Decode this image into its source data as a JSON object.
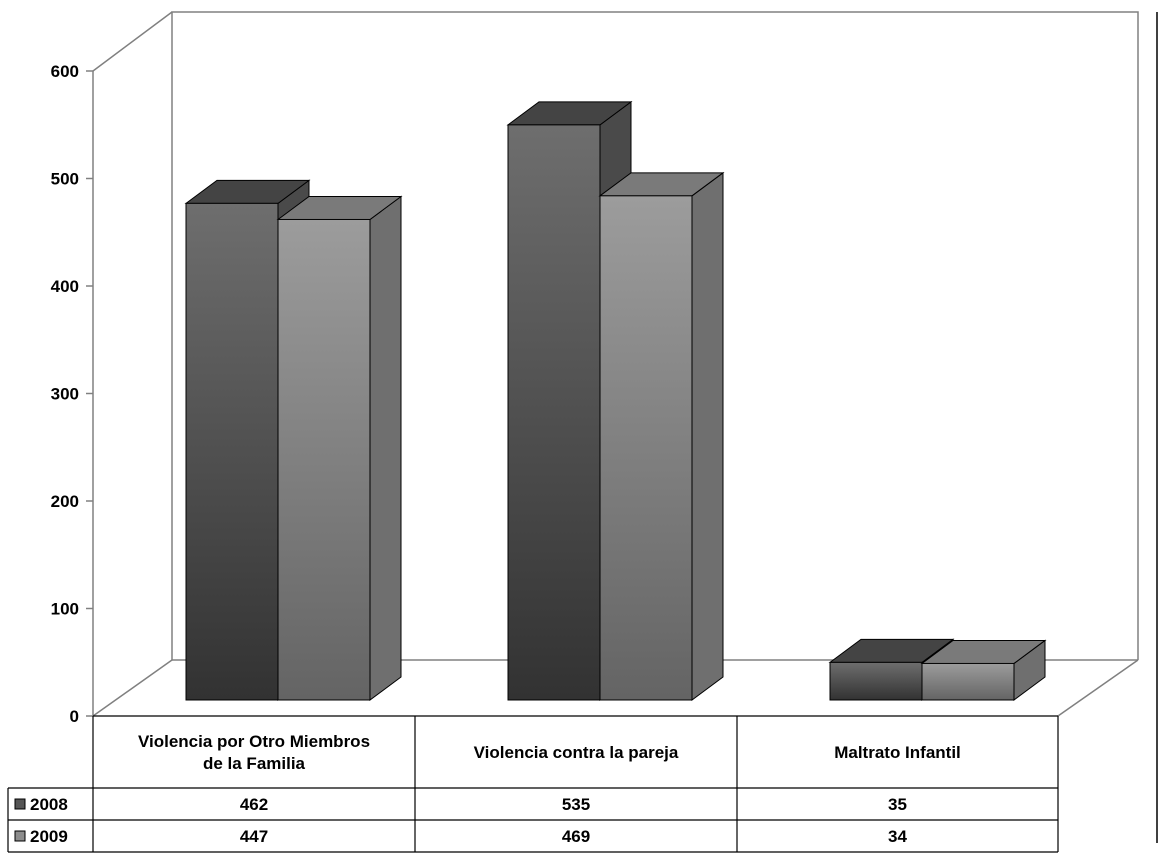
{
  "chart_data": {
    "type": "bar",
    "style": "3d-clustered-column-with-data-table",
    "categories": [
      [
        "Violencia por Otro Miembros",
        "de la Familia"
      ],
      [
        "Violencia contra la pareja"
      ],
      [
        "Maltrato Infantil"
      ]
    ],
    "series": [
      {
        "name": "2008",
        "values": [
          462,
          535,
          35
        ],
        "color": "#555555"
      },
      {
        "name": "2009",
        "values": [
          447,
          469,
          34
        ],
        "color": "#8c8c8c"
      }
    ],
    "y_ticks": [
      "0",
      "100",
      "200",
      "300",
      "400",
      "500",
      "600"
    ],
    "ylim": [
      0,
      600
    ],
    "grid": false,
    "legend": "data-table-left",
    "colors": {
      "series_2008": "#555555",
      "series_2009": "#8c8c8c",
      "axis": "#808080",
      "table_border": "#000000"
    }
  }
}
